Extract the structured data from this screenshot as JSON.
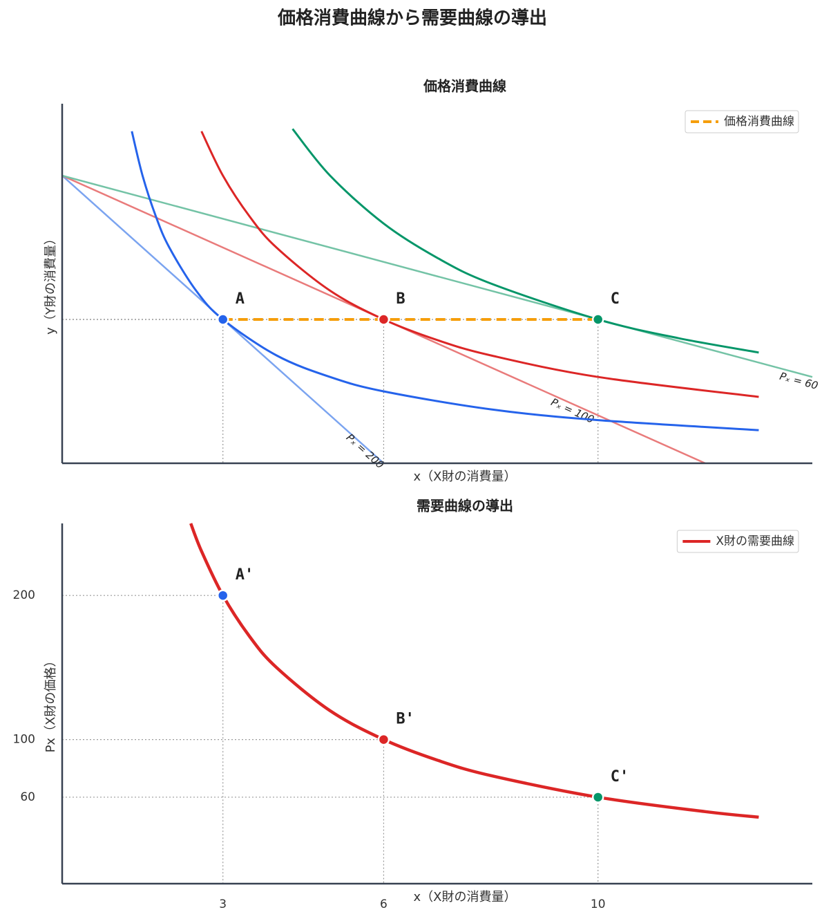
{
  "title": "価格消費曲線から需要曲線の導出",
  "chart_data": [
    {
      "type": "line",
      "title": "価格消費曲線",
      "x_label": "x（X財の消費量）",
      "y_label": "y（Y財の消費量）",
      "xlim": [
        0,
        14
      ],
      "ylim": [
        0,
        15
      ],
      "series": [
        {
          "color": "#7ba4f0",
          "x": [
            0,
            6
          ],
          "y": [
            12,
            0
          ],
          "label": "Pₓ = 200"
        },
        {
          "color": "#e97b7b",
          "x": [
            0,
            12
          ],
          "y": [
            12,
            0
          ],
          "label": "Pₓ = 100"
        },
        {
          "color": "#74c3a6",
          "x": [
            0,
            14
          ],
          "y": [
            12,
            3.6
          ],
          "label": "Pₓ = 60"
        },
        {
          "color": "#2563eb",
          "x": [
            1.3,
            1.5,
            1.75,
            2,
            2.5,
            3,
            4,
            5,
            6,
            8,
            10,
            13
          ],
          "y": [
            13.85,
            12,
            10.29,
            9,
            7.2,
            6,
            4.5,
            3.6,
            3,
            2.25,
            1.8,
            1.38
          ]
        },
        {
          "color": "#dc2626",
          "x": [
            2.6,
            3,
            3.5,
            4,
            5,
            6,
            7,
            8,
            10,
            13
          ],
          "y": [
            13.85,
            12,
            10.29,
            9,
            7.2,
            6,
            5.14,
            4.5,
            3.6,
            2.77
          ]
        },
        {
          "color": "#059669",
          "x": [
            4.3,
            5,
            6,
            7,
            8,
            10,
            11.5,
            13
          ],
          "y": [
            13.95,
            12,
            10,
            8.57,
            7.5,
            6,
            5.22,
            4.62
          ]
        },
        {
          "name": "価格消費曲線",
          "color": "#f59e0b",
          "dashed": true,
          "x": [
            3,
            6,
            10
          ],
          "y": [
            6,
            6,
            6
          ]
        }
      ],
      "points": [
        {
          "label": "A",
          "x": 3,
          "y": 6,
          "color": "#2563eb"
        },
        {
          "label": "B",
          "x": 6,
          "y": 6,
          "color": "#dc2626"
        },
        {
          "label": "C",
          "x": 10,
          "y": 6,
          "color": "#059669"
        }
      ]
    },
    {
      "type": "line",
      "title": "需要曲線の導出",
      "x_label": "x（X財の消費量）",
      "y_label": "Px（X財の価格）",
      "xlim": [
        0,
        14
      ],
      "ylim": [
        0,
        250
      ],
      "xticks": [
        3,
        6,
        10
      ],
      "yticks": [
        60,
        100,
        200
      ],
      "series": [
        {
          "name": "X財の需要曲線",
          "color": "#dc2626",
          "x": [
            2.4,
            2.6,
            3,
            3.5,
            4,
            5,
            6,
            7,
            8,
            10,
            12,
            13
          ],
          "y": [
            250,
            230.77,
            200,
            171.43,
            150,
            120,
            100,
            85.71,
            75,
            60,
            50,
            46.15
          ]
        }
      ],
      "points": [
        {
          "label": "A'",
          "x": 3,
          "y": 200,
          "color": "#2563eb"
        },
        {
          "label": "B'",
          "x": 6,
          "y": 100,
          "color": "#dc2626"
        },
        {
          "label": "C'",
          "x": 10,
          "y": 60,
          "color": "#059669"
        }
      ]
    }
  ]
}
